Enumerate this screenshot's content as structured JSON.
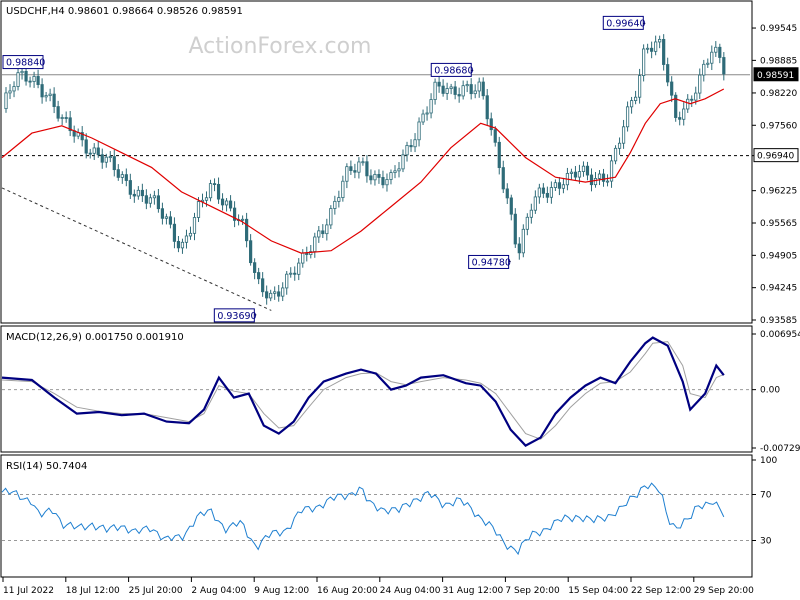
{
  "watermark": "ActionForex.com",
  "chart_data": [
    {
      "type": "candlestick",
      "title": "USDCHF,H4  0.98601 0.98664 0.98526 0.98591",
      "ylim": [
        0.93585,
        0.99954
      ],
      "y_ticks": [
        "0.99545",
        "0.98885",
        "0.98220",
        "0.97560",
        "0.96940",
        "0.96225",
        "0.95565",
        "0.94905",
        "0.94245",
        "0.93585"
      ],
      "last_price": "0.98591",
      "moving_average_color": "#e00000",
      "candle_color": "#2e6b78",
      "horizontal_levels": [
        {
          "label": "0.98591",
          "value": 0.98591,
          "style": "solid"
        },
        {
          "label": "0.96940",
          "value": 0.9694,
          "style": "dashed"
        }
      ],
      "annotations": [
        {
          "label": "0.98840",
          "time": 0.01,
          "value": 0.9884
        },
        {
          "label": "0.93690",
          "time": 0.34,
          "value": 0.9369
        },
        {
          "label": "0.98680",
          "time": 0.63,
          "value": 0.9868
        },
        {
          "label": "0.94780",
          "time": 0.68,
          "value": 0.9478
        },
        {
          "label": "0.99640",
          "time": 0.86,
          "value": 0.9964
        }
      ],
      "trendline": {
        "from": [
          0.0,
          0.9628
        ],
        "to": [
          0.36,
          0.9378
        ]
      },
      "close_series": [
        [
          0.0,
          0.979
        ],
        [
          0.02,
          0.985
        ],
        [
          0.04,
          0.9858
        ],
        [
          0.06,
          0.982
        ],
        [
          0.08,
          0.976
        ],
        [
          0.1,
          0.974
        ],
        [
          0.12,
          0.9705
        ],
        [
          0.14,
          0.968
        ],
        [
          0.16,
          0.965
        ],
        [
          0.18,
          0.962
        ],
        [
          0.2,
          0.96
        ],
        [
          0.22,
          0.956
        ],
        [
          0.24,
          0.951
        ],
        [
          0.26,
          0.9575
        ],
        [
          0.28,
          0.963
        ],
        [
          0.3,
          0.96
        ],
        [
          0.32,
          0.956
        ],
        [
          0.34,
          0.943
        ],
        [
          0.36,
          0.941
        ],
        [
          0.38,
          0.944
        ],
        [
          0.4,
          0.947
        ],
        [
          0.42,
          0.953
        ],
        [
          0.44,
          0.958
        ],
        [
          0.46,
          0.965
        ],
        [
          0.48,
          0.968
        ],
        [
          0.5,
          0.965
        ],
        [
          0.52,
          0.964
        ],
        [
          0.54,
          0.97
        ],
        [
          0.56,
          0.977
        ],
        [
          0.58,
          0.983
        ],
        [
          0.6,
          0.982
        ],
        [
          0.62,
          0.984
        ],
        [
          0.64,
          0.983
        ],
        [
          0.66,
          0.97
        ],
        [
          0.68,
          0.958
        ],
        [
          0.69,
          0.95
        ],
        [
          0.71,
          0.96
        ],
        [
          0.73,
          0.962
        ],
        [
          0.75,
          0.965
        ],
        [
          0.77,
          0.966
        ],
        [
          0.79,
          0.964
        ],
        [
          0.81,
          0.966
        ],
        [
          0.83,
          0.975
        ],
        [
          0.85,
          0.983
        ],
        [
          0.86,
          0.992
        ],
        [
          0.88,
          0.993
        ],
        [
          0.89,
          0.985
        ],
        [
          0.9,
          0.976
        ],
        [
          0.92,
          0.98
        ],
        [
          0.93,
          0.985
        ],
        [
          0.95,
          0.992
        ],
        [
          0.965,
          0.9865
        ]
      ],
      "ma_series": [
        [
          0.0,
          0.969
        ],
        [
          0.04,
          0.974
        ],
        [
          0.08,
          0.9755
        ],
        [
          0.12,
          0.973
        ],
        [
          0.16,
          0.97
        ],
        [
          0.2,
          0.967
        ],
        [
          0.24,
          0.962
        ],
        [
          0.28,
          0.959
        ],
        [
          0.32,
          0.956
        ],
        [
          0.36,
          0.952
        ],
        [
          0.4,
          0.9495
        ],
        [
          0.44,
          0.95
        ],
        [
          0.48,
          0.954
        ],
        [
          0.52,
          0.959
        ],
        [
          0.56,
          0.964
        ],
        [
          0.6,
          0.971
        ],
        [
          0.64,
          0.976
        ],
        [
          0.66,
          0.975
        ],
        [
          0.7,
          0.969
        ],
        [
          0.74,
          0.965
        ],
        [
          0.78,
          0.964
        ],
        [
          0.82,
          0.965
        ],
        [
          0.84,
          0.97
        ],
        [
          0.86,
          0.976
        ],
        [
          0.88,
          0.98
        ],
        [
          0.9,
          0.981
        ],
        [
          0.92,
          0.98
        ],
        [
          0.94,
          0.981
        ],
        [
          0.965,
          0.983
        ]
      ]
    },
    {
      "type": "line",
      "title": "MACD(12,26,9) 0.001750 0.001910",
      "ylim": [
        -0.007294,
        0.006954
      ],
      "y_ticks": [
        "0.006954",
        "0.00",
        "-0.007294"
      ],
      "macd_color": "#000080",
      "signal_color": "#a0a0a0",
      "macd": [
        [
          0.0,
          0.0015
        ],
        [
          0.04,
          0.0012
        ],
        [
          0.07,
          -0.001
        ],
        [
          0.1,
          -0.003
        ],
        [
          0.13,
          -0.0028
        ],
        [
          0.16,
          -0.0032
        ],
        [
          0.19,
          -0.003
        ],
        [
          0.22,
          -0.004
        ],
        [
          0.25,
          -0.0042
        ],
        [
          0.27,
          -0.0025
        ],
        [
          0.29,
          0.0015
        ],
        [
          0.31,
          -0.001
        ],
        [
          0.33,
          -0.0005
        ],
        [
          0.35,
          -0.0045
        ],
        [
          0.37,
          -0.0055
        ],
        [
          0.39,
          -0.004
        ],
        [
          0.41,
          -0.001
        ],
        [
          0.43,
          0.001
        ],
        [
          0.46,
          0.002
        ],
        [
          0.48,
          0.0025
        ],
        [
          0.5,
          0.002
        ],
        [
          0.52,
          0.0
        ],
        [
          0.54,
          0.0005
        ],
        [
          0.56,
          0.0015
        ],
        [
          0.59,
          0.0018
        ],
        [
          0.62,
          0.0008
        ],
        [
          0.64,
          0.0005
        ],
        [
          0.66,
          -0.0015
        ],
        [
          0.68,
          -0.005
        ],
        [
          0.7,
          -0.007
        ],
        [
          0.72,
          -0.006
        ],
        [
          0.74,
          -0.003
        ],
        [
          0.76,
          -0.001
        ],
        [
          0.78,
          0.0005
        ],
        [
          0.8,
          0.0015
        ],
        [
          0.82,
          0.0008
        ],
        [
          0.84,
          0.0035
        ],
        [
          0.86,
          0.0058
        ],
        [
          0.87,
          0.0065
        ],
        [
          0.89,
          0.0055
        ],
        [
          0.91,
          0.001
        ],
        [
          0.92,
          -0.0025
        ],
        [
          0.94,
          -0.0005
        ],
        [
          0.955,
          0.003
        ],
        [
          0.965,
          0.0018
        ]
      ],
      "signal": [
        [
          0.0,
          0.0012
        ],
        [
          0.04,
          0.001
        ],
        [
          0.07,
          -0.0005
        ],
        [
          0.1,
          -0.0022
        ],
        [
          0.13,
          -0.0027
        ],
        [
          0.16,
          -0.003
        ],
        [
          0.19,
          -0.003
        ],
        [
          0.22,
          -0.0035
        ],
        [
          0.25,
          -0.004
        ],
        [
          0.27,
          -0.003
        ],
        [
          0.29,
          0.0005
        ],
        [
          0.31,
          -0.0002
        ],
        [
          0.33,
          -0.0005
        ],
        [
          0.35,
          -0.003
        ],
        [
          0.37,
          -0.0048
        ],
        [
          0.39,
          -0.0045
        ],
        [
          0.41,
          -0.0022
        ],
        [
          0.43,
          0.0
        ],
        [
          0.46,
          0.0015
        ],
        [
          0.48,
          0.002
        ],
        [
          0.5,
          0.0021
        ],
        [
          0.52,
          0.001
        ],
        [
          0.54,
          0.0006
        ],
        [
          0.56,
          0.001
        ],
        [
          0.59,
          0.0015
        ],
        [
          0.62,
          0.0012
        ],
        [
          0.64,
          0.0008
        ],
        [
          0.66,
          -0.0005
        ],
        [
          0.68,
          -0.003
        ],
        [
          0.7,
          -0.0055
        ],
        [
          0.72,
          -0.0062
        ],
        [
          0.74,
          -0.0045
        ],
        [
          0.76,
          -0.0022
        ],
        [
          0.78,
          -0.0005
        ],
        [
          0.8,
          0.0008
        ],
        [
          0.82,
          0.001
        ],
        [
          0.84,
          0.0022
        ],
        [
          0.86,
          0.0045
        ],
        [
          0.87,
          0.0058
        ],
        [
          0.89,
          0.006
        ],
        [
          0.91,
          0.003
        ],
        [
          0.92,
          -0.0005
        ],
        [
          0.94,
          -0.001
        ],
        [
          0.955,
          0.0015
        ],
        [
          0.965,
          0.0019
        ]
      ]
    },
    {
      "type": "line",
      "title": "RSI(14) 50.7404",
      "ylim": [
        0,
        100
      ],
      "y_ticks": [
        "100",
        "70",
        "30"
      ],
      "levels": [
        70,
        30
      ],
      "line_color": "#1e7fd0",
      "rsi": [
        [
          0.0,
          72
        ],
        [
          0.02,
          70
        ],
        [
          0.04,
          65
        ],
        [
          0.05,
          50
        ],
        [
          0.07,
          58
        ],
        [
          0.08,
          45
        ],
        [
          0.1,
          40
        ],
        [
          0.12,
          45
        ],
        [
          0.14,
          38
        ],
        [
          0.16,
          44
        ],
        [
          0.18,
          36
        ],
        [
          0.2,
          42
        ],
        [
          0.22,
          30
        ],
        [
          0.24,
          33
        ],
        [
          0.26,
          50
        ],
        [
          0.28,
          55
        ],
        [
          0.3,
          40
        ],
        [
          0.32,
          45
        ],
        [
          0.34,
          25
        ],
        [
          0.36,
          35
        ],
        [
          0.38,
          40
        ],
        [
          0.4,
          55
        ],
        [
          0.42,
          60
        ],
        [
          0.44,
          65
        ],
        [
          0.46,
          70
        ],
        [
          0.48,
          75
        ],
        [
          0.49,
          62
        ],
        [
          0.51,
          58
        ],
        [
          0.53,
          55
        ],
        [
          0.55,
          66
        ],
        [
          0.57,
          70
        ],
        [
          0.59,
          62
        ],
        [
          0.61,
          65
        ],
        [
          0.63,
          56
        ],
        [
          0.65,
          45
        ],
        [
          0.67,
          28
        ],
        [
          0.69,
          22
        ],
        [
          0.71,
          35
        ],
        [
          0.73,
          42
        ],
        [
          0.75,
          48
        ],
        [
          0.77,
          52
        ],
        [
          0.79,
          46
        ],
        [
          0.81,
          52
        ],
        [
          0.83,
          58
        ],
        [
          0.85,
          72
        ],
        [
          0.86,
          80
        ],
        [
          0.88,
          72
        ],
        [
          0.89,
          50
        ],
        [
          0.9,
          42
        ],
        [
          0.92,
          48
        ],
        [
          0.93,
          60
        ],
        [
          0.95,
          65
        ],
        [
          0.965,
          51
        ]
      ]
    }
  ],
  "x_axis_labels": [
    "11 Jul 2022",
    "18 Jul 12:00",
    "25 Jul 20:00",
    "2 Aug 04:00",
    "9 Aug 12:00",
    "16 Aug 20:00",
    "24 Aug 04:00",
    "31 Aug 12:00",
    "7 Sep 20:00",
    "15 Sep 04:00",
    "22 Sep 12:00",
    "29 Sep 20:00"
  ]
}
